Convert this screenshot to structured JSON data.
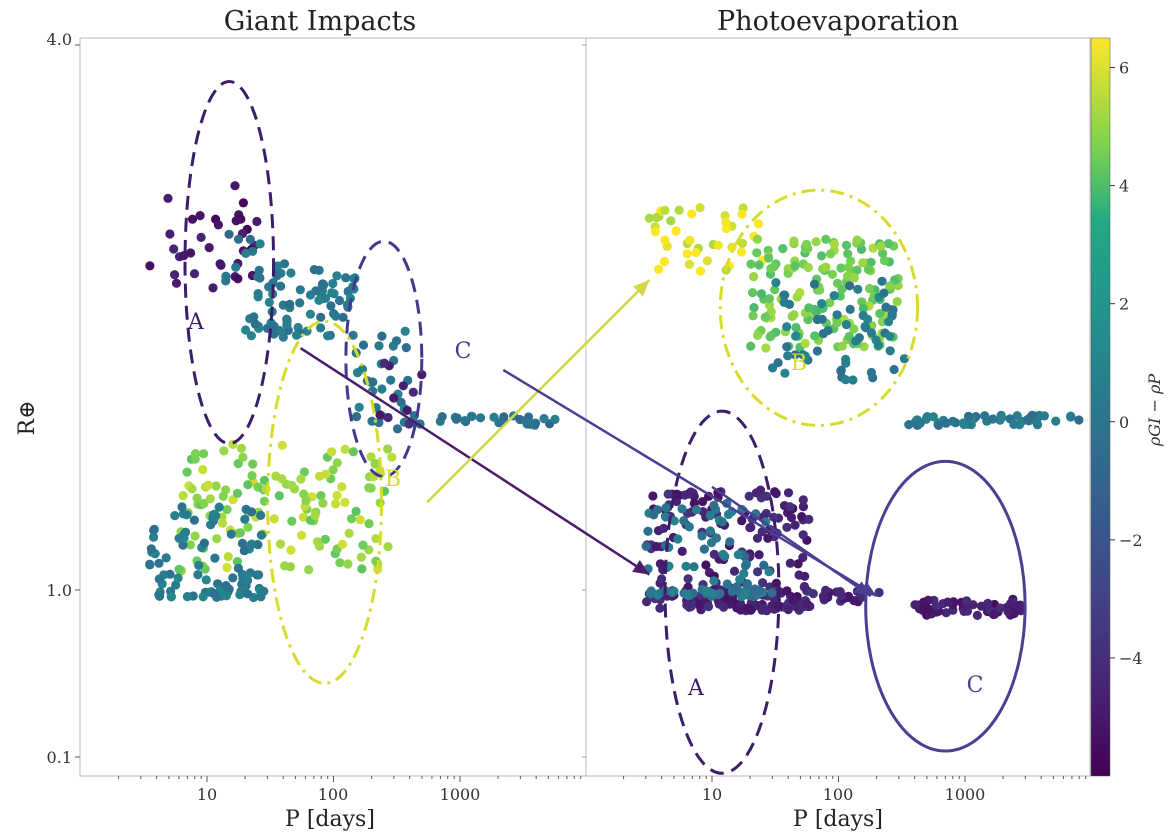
{
  "chart_data": {
    "type": "scatter",
    "y_scale": "log",
    "x_scale": "log",
    "ylabel": "R⊕",
    "colorbar": {
      "label": "ρGI − ρP",
      "ticks": [
        "6",
        "4",
        "2",
        "0",
        "−2",
        "−4"
      ],
      "tick_values": [
        6,
        4,
        2,
        0,
        -2,
        -4
      ],
      "range": [
        -6,
        6.5
      ],
      "colormap": "viridis"
    },
    "panels": [
      {
        "title": "Giant Impacts",
        "xlabel": "P [days]",
        "x_ticks": [
          "10",
          "100",
          "1000"
        ],
        "x_tick_values": [
          10,
          100,
          1000
        ],
        "y_ticks": [
          "4.0",
          "1.0",
          "0.1"
        ],
        "y_tick_values": [
          4.0,
          1.0,
          0.1
        ],
        "regions": [
          {
            "label": "A",
            "color": "#3b1d6a",
            "style": "dashed",
            "center": [
              15,
              2.3
            ],
            "rx_dex": 0.35,
            "ry_dex": 0.2
          },
          {
            "label": "C",
            "color": "#3f3a8f",
            "style": "dashed",
            "center": [
              250,
              1.8
            ],
            "rx_dex": 0.3,
            "ry_dex": 0.13
          },
          {
            "label": "B",
            "color": "#d7dc2c",
            "style": "dashdot",
            "center": [
              85,
              1.25
            ],
            "rx_dex": 0.45,
            "ry_dex": 0.2
          }
        ],
        "clusters": [
          {
            "group": "A",
            "x_range": [
              3.5,
              25
            ],
            "y_range": [
              2.1,
              2.8
            ],
            "n": 34,
            "color_value": -5.0
          },
          {
            "group": "A",
            "x_range": [
              14,
              30
            ],
            "y_range": [
              2.1,
              2.5
            ],
            "n": 10,
            "color_value": 0.0
          },
          {
            "group": "main",
            "x_range": [
              20,
              150
            ],
            "y_range": [
              1.9,
              2.3
            ],
            "n": 80,
            "color_value": 0.3
          },
          {
            "group": "C",
            "x_range": [
              150,
              400
            ],
            "y_range": [
              1.5,
              1.95
            ],
            "n": 30,
            "color_value": 0.2
          },
          {
            "group": "C-flat",
            "x_range": [
              400,
              6000
            ],
            "y_range": [
              1.52,
              1.56
            ],
            "n": 30,
            "color_value": 0.0
          },
          {
            "group": "C",
            "x_range": [
              200,
              500
            ],
            "y_range": [
              1.52,
              1.8
            ],
            "n": 10,
            "color_value": -4.5
          },
          {
            "group": "B",
            "x_range": [
              6,
              300
            ],
            "y_range": [
              1.05,
              1.45
            ],
            "n": 140,
            "color_value": 5.2
          },
          {
            "group": "low",
            "x_range": [
              3.5,
              30
            ],
            "y_range": [
              0.9,
              1.25
            ],
            "n": 90,
            "color_value": 0.4
          }
        ]
      },
      {
        "title": "Photoevaporation",
        "xlabel": "P [days]",
        "x_ticks": [
          "10",
          "100",
          "1000"
        ],
        "x_tick_values": [
          10,
          100,
          1000
        ],
        "regions": [
          {
            "label": "B",
            "color": "#d7dc2c",
            "style": "dashdot",
            "center": [
              70,
              2.05
            ],
            "rx_dex": 0.78,
            "ry_dex": 0.13
          },
          {
            "label": "A",
            "color": "#3b1d6a",
            "style": "dashed",
            "center": [
              12,
              0.97
            ],
            "rx_dex": 0.45,
            "ry_dex": 0.2
          },
          {
            "label": "C",
            "color": "#4b3f93",
            "style": "solid",
            "center": [
              700,
              0.8
            ],
            "rx_dex": 0.63,
            "ry_dex": 0.16
          }
        ],
        "clusters": [
          {
            "group": "B",
            "x_range": [
              2.8,
              25
            ],
            "y_range": [
              2.25,
              2.65
            ],
            "n": 40,
            "color_value": 6.2
          },
          {
            "group": "B",
            "x_range": [
              20,
              300
            ],
            "y_range": [
              1.85,
              2.45
            ],
            "n": 160,
            "color_value": 4.8
          },
          {
            "group": "B",
            "x_range": [
              30,
              350
            ],
            "y_range": [
              1.7,
              2.2
            ],
            "n": 60,
            "color_value": 0.5
          },
          {
            "group": "B-flat",
            "x_range": [
              350,
              8000
            ],
            "y_range": [
              1.52,
              1.56
            ],
            "n": 50,
            "color_value": 0.2
          },
          {
            "group": "A",
            "x_range": [
              3,
              60
            ],
            "y_range": [
              0.75,
              1.3
            ],
            "n": 230,
            "color_value": -4.5
          },
          {
            "group": "A",
            "x_range": [
              3,
              30
            ],
            "y_range": [
              0.9,
              1.25
            ],
            "n": 90,
            "color_value": 0.2
          },
          {
            "group": "bridge",
            "x_range": [
              60,
              250
            ],
            "y_range": [
              0.85,
              1.0
            ],
            "n": 20,
            "color_value": -4.5
          },
          {
            "group": "C",
            "x_range": [
              400,
              3000
            ],
            "y_range": [
              0.7,
              0.88
            ],
            "n": 60,
            "color_value": -4.8
          }
        ]
      }
    ],
    "arrows": [
      {
        "color": "#4a1c6b",
        "from_panel": 0,
        "from": [
          55,
          1.85
        ],
        "to_panel": 1,
        "to": [
          3.2,
          1.04
        ]
      },
      {
        "color": "#d0d84a",
        "from_panel": 0,
        "from": [
          550,
          1.25
        ],
        "to_panel": 1,
        "to": [
          3.2,
          2.2
        ]
      },
      {
        "color": "#4b3f93",
        "from_panel": 0,
        "from": [
          2200,
          1.75
        ],
        "to_panel": 1,
        "to": [
          200,
          0.92
        ]
      },
      {
        "color": "#4b3f93",
        "from_panel": 1,
        "from": [
          10,
          1.3
        ],
        "to_panel": 1,
        "to": [
          180,
          0.92
        ]
      }
    ]
  }
}
